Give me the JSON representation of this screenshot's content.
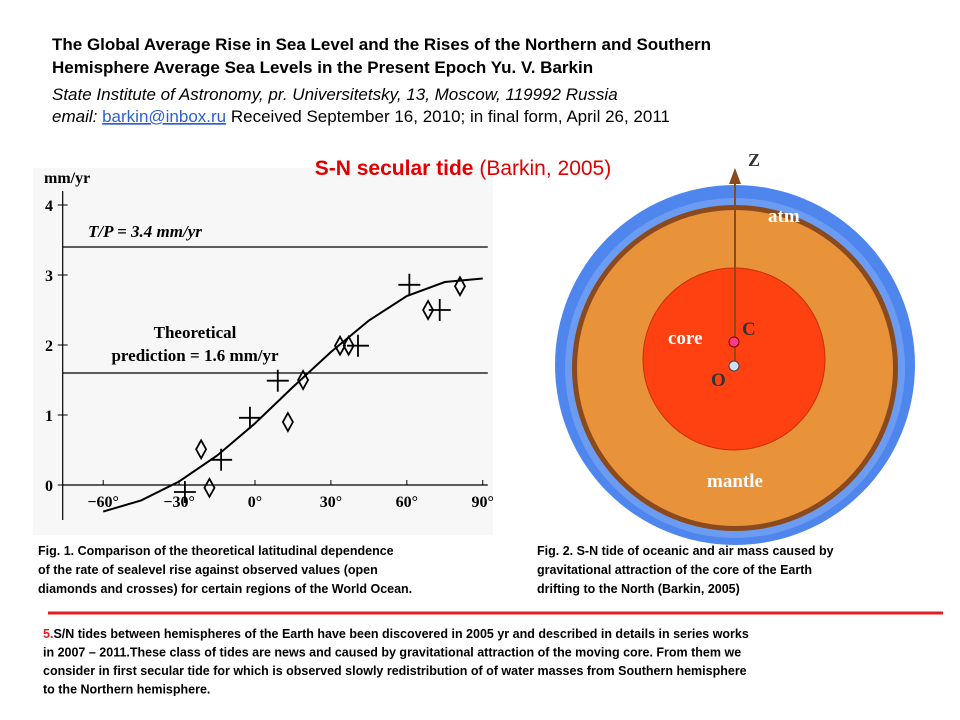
{
  "header": {
    "title_lines": [
      "The Global Average Rise in Sea Level and the Rises of the Northern and Southern",
      "Hemisphere Average Sea Levels in the Present Epoch   Yu. V. Barkin"
    ],
    "affiliation": "State Institute of Astronomy, pr. Universitetsky, 13, Moscow, 119992 Russia",
    "email_label": "email:",
    "email": "barkin@inbox.ru",
    "received": "Received September 16, 2010; in final form, April 26, 2011"
  },
  "slide_title": {
    "bold": "S-N secular tide",
    "rest": "(Barkin, 2005)"
  },
  "chart_data": {
    "type": "scatter",
    "y_label": "mm/yr",
    "xlim": [
      -76,
      92
    ],
    "ylim": [
      -0.5,
      4.2
    ],
    "xticks": [
      {
        "value": -60,
        "label": "−60°"
      },
      {
        "value": -30,
        "label": "−30°"
      },
      {
        "value": 0,
        "label": "0°"
      },
      {
        "value": 30,
        "label": "30°"
      },
      {
        "value": 60,
        "label": "60°"
      },
      {
        "value": 90,
        "label": "90°"
      }
    ],
    "yticks": [
      0,
      1,
      2,
      3,
      4
    ],
    "reference_lines": [
      {
        "value": 3.4,
        "label_lines": [
          "T/P = 3.4 mm/yr"
        ]
      },
      {
        "value": 1.6,
        "label_lines": [
          "Theoretical",
          "prediction = 1.6 mm/yr"
        ]
      }
    ],
    "series": [
      {
        "marker": "line",
        "color": "#000000",
        "x": [
          -60,
          -45,
          -30,
          -15,
          0,
          15,
          30,
          45,
          60,
          75,
          90
        ],
        "values": [
          -0.38,
          -0.22,
          0.05,
          0.42,
          0.88,
          1.4,
          1.9,
          2.35,
          2.7,
          2.9,
          2.95
        ]
      },
      {
        "marker": "diamond",
        "color": "#000000",
        "x": [
          -21.3,
          -18,
          13,
          19,
          33.6,
          37,
          68.4,
          81
        ],
        "values": [
          0.51,
          -0.04,
          0.9,
          1.5,
          1.99,
          1.99,
          2.5,
          2.84
        ]
      },
      {
        "marker": "cross",
        "color": "#000000",
        "x": [
          -27.7,
          -13.4,
          -2,
          9,
          40.7,
          61,
          73
        ],
        "values": [
          -0.1,
          0.36,
          0.96,
          1.49,
          1.99,
          2.86,
          2.5
        ]
      }
    ]
  },
  "figure2": {
    "z": "Z",
    "atm": "atm",
    "core": "core",
    "c": "C",
    "o": "O",
    "mantle": "mantle"
  },
  "captions": {
    "fig1": [
      "Fig. 1. Comparison of the theoretical latitudinal dependence",
      "of the rate of sealevel rise against observed values (open",
      "diamonds and crosses) for certain regions of the World Ocean."
    ],
    "fig2": [
      "Fig. 2. S-N tide of oceanic and air mass caused by",
      "gravitational attraction of the core of the Earth",
      "drifting to the North (Barkin, 2005)"
    ]
  },
  "footer": {
    "number": "5.",
    "lines": [
      "S/N tides between hemispheres of the Earth have been discovered in 2005 yr and described in details in series works",
      "in 2007 – 2011.These class of tides are news and caused by gravitational attraction of the moving core. From them we",
      "consider in first secular tide for which is observed slowly redistribution of of water masses from Southern hemisphere",
      "to the Northern hemisphere."
    ]
  }
}
